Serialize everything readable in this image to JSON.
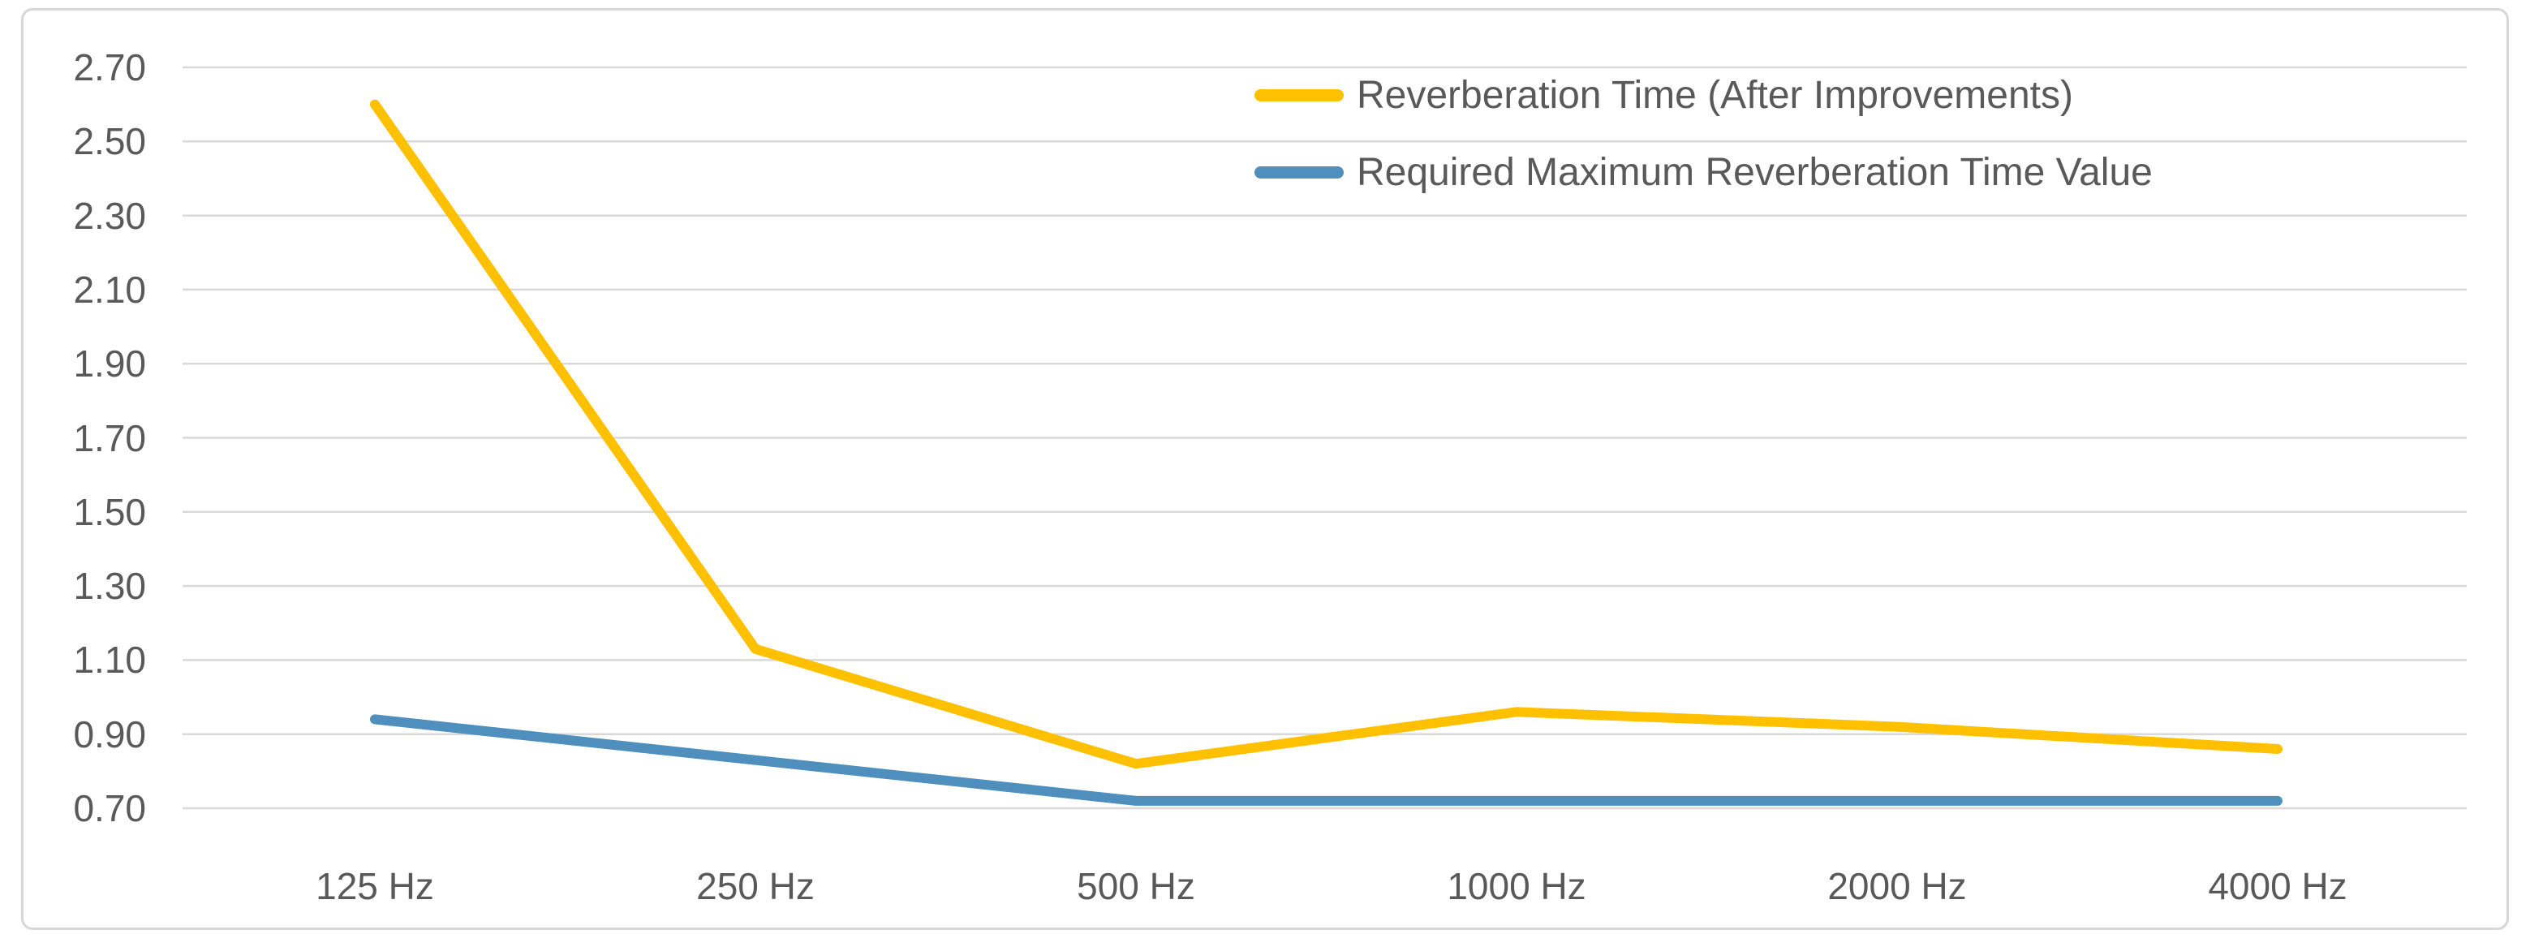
{
  "chart_data": {
    "type": "line",
    "categories": [
      "125 Hz",
      "250 Hz",
      "500 Hz",
      "1000 Hz",
      "2000 Hz",
      "4000 Hz"
    ],
    "series": [
      {
        "name": "Reverberation Time (After Improvements)",
        "color": "#FFC000",
        "values": [
          2.6,
          1.13,
          0.82,
          0.96,
          0.92,
          0.86
        ]
      },
      {
        "name": "Required Maximum Reverberation Time Value",
        "color": "#4E8FBE",
        "values": [
          0.94,
          0.83,
          0.72,
          0.72,
          0.72,
          0.72
        ]
      }
    ],
    "y_axis": {
      "min": 0.7,
      "max": 2.7,
      "step": 0.2,
      "tick_labels": [
        "2.70",
        "2.50",
        "2.30",
        "2.10",
        "1.90",
        "1.70",
        "1.50",
        "1.30",
        "1.10",
        "0.90",
        "0.70"
      ]
    },
    "grid": true,
    "legend_position": "top-right"
  },
  "colors": {
    "gridline": "#D9D9D9",
    "chart_border": "#D7D7D7",
    "text": "#595959",
    "background": "#FFFFFF"
  }
}
